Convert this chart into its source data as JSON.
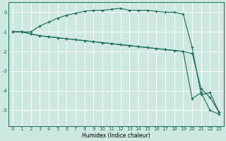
{
  "xlabel": "Humidex (Indice chaleur)",
  "bg_color": "#cce8e0",
  "grid_color": "#ffffff",
  "line_color": "#1a6b5a",
  "xlim": [
    -0.5,
    23.5
  ],
  "ylim": [
    -5.8,
    0.5
  ],
  "yticks": [
    0,
    -1,
    -2,
    -3,
    -4,
    -5
  ],
  "xticks": [
    0,
    1,
    2,
    3,
    4,
    5,
    6,
    7,
    8,
    9,
    10,
    11,
    12,
    13,
    14,
    15,
    16,
    17,
    18,
    19,
    20,
    21,
    22,
    23
  ],
  "series1_x": [
    0,
    1,
    2,
    3,
    4,
    5,
    6,
    7,
    8,
    9,
    10,
    11,
    12,
    13,
    14,
    15,
    16,
    17,
    18,
    19,
    20,
    21,
    22,
    23
  ],
  "series1_y": [
    -1.0,
    -1.0,
    -1.0,
    -0.7,
    -0.5,
    -0.3,
    -0.15,
    -0.05,
    0.05,
    0.1,
    0.1,
    0.15,
    0.2,
    0.1,
    0.1,
    0.1,
    0.05,
    0.0,
    0.0,
    -0.1,
    -1.8,
    -4.2,
    -4.1,
    -5.1
  ],
  "series2_x": [
    0,
    1,
    2,
    3,
    4,
    5,
    6,
    7,
    8,
    9,
    10,
    11,
    12,
    13,
    14,
    15,
    16,
    17,
    18,
    19,
    20,
    21,
    22,
    23
  ],
  "series2_y": [
    -1.0,
    -1.0,
    -1.1,
    -1.2,
    -1.25,
    -1.3,
    -1.35,
    -1.4,
    -1.45,
    -1.5,
    -1.55,
    -1.6,
    -1.65,
    -1.7,
    -1.75,
    -1.8,
    -1.85,
    -1.9,
    -1.95,
    -2.0,
    -2.1,
    -3.9,
    -4.35,
    -5.1
  ],
  "series3_x": [
    0,
    1,
    2,
    3,
    4,
    5,
    6,
    7,
    8,
    9,
    10,
    11,
    12,
    13,
    14,
    15,
    16,
    17,
    18,
    19,
    20,
    21,
    22,
    23
  ],
  "series3_y": [
    -1.0,
    -1.0,
    -1.1,
    -1.2,
    -1.25,
    -1.3,
    -1.35,
    -1.4,
    -1.45,
    -1.5,
    -1.55,
    -1.6,
    -1.65,
    -1.7,
    -1.75,
    -1.8,
    -1.85,
    -1.9,
    -1.95,
    -2.0,
    -4.4,
    -4.1,
    -5.0,
    -5.2
  ],
  "marker": "+",
  "markersize": 2.5,
  "linewidth": 0.8,
  "tick_fontsize": 5.0,
  "xlabel_fontsize": 5.5
}
